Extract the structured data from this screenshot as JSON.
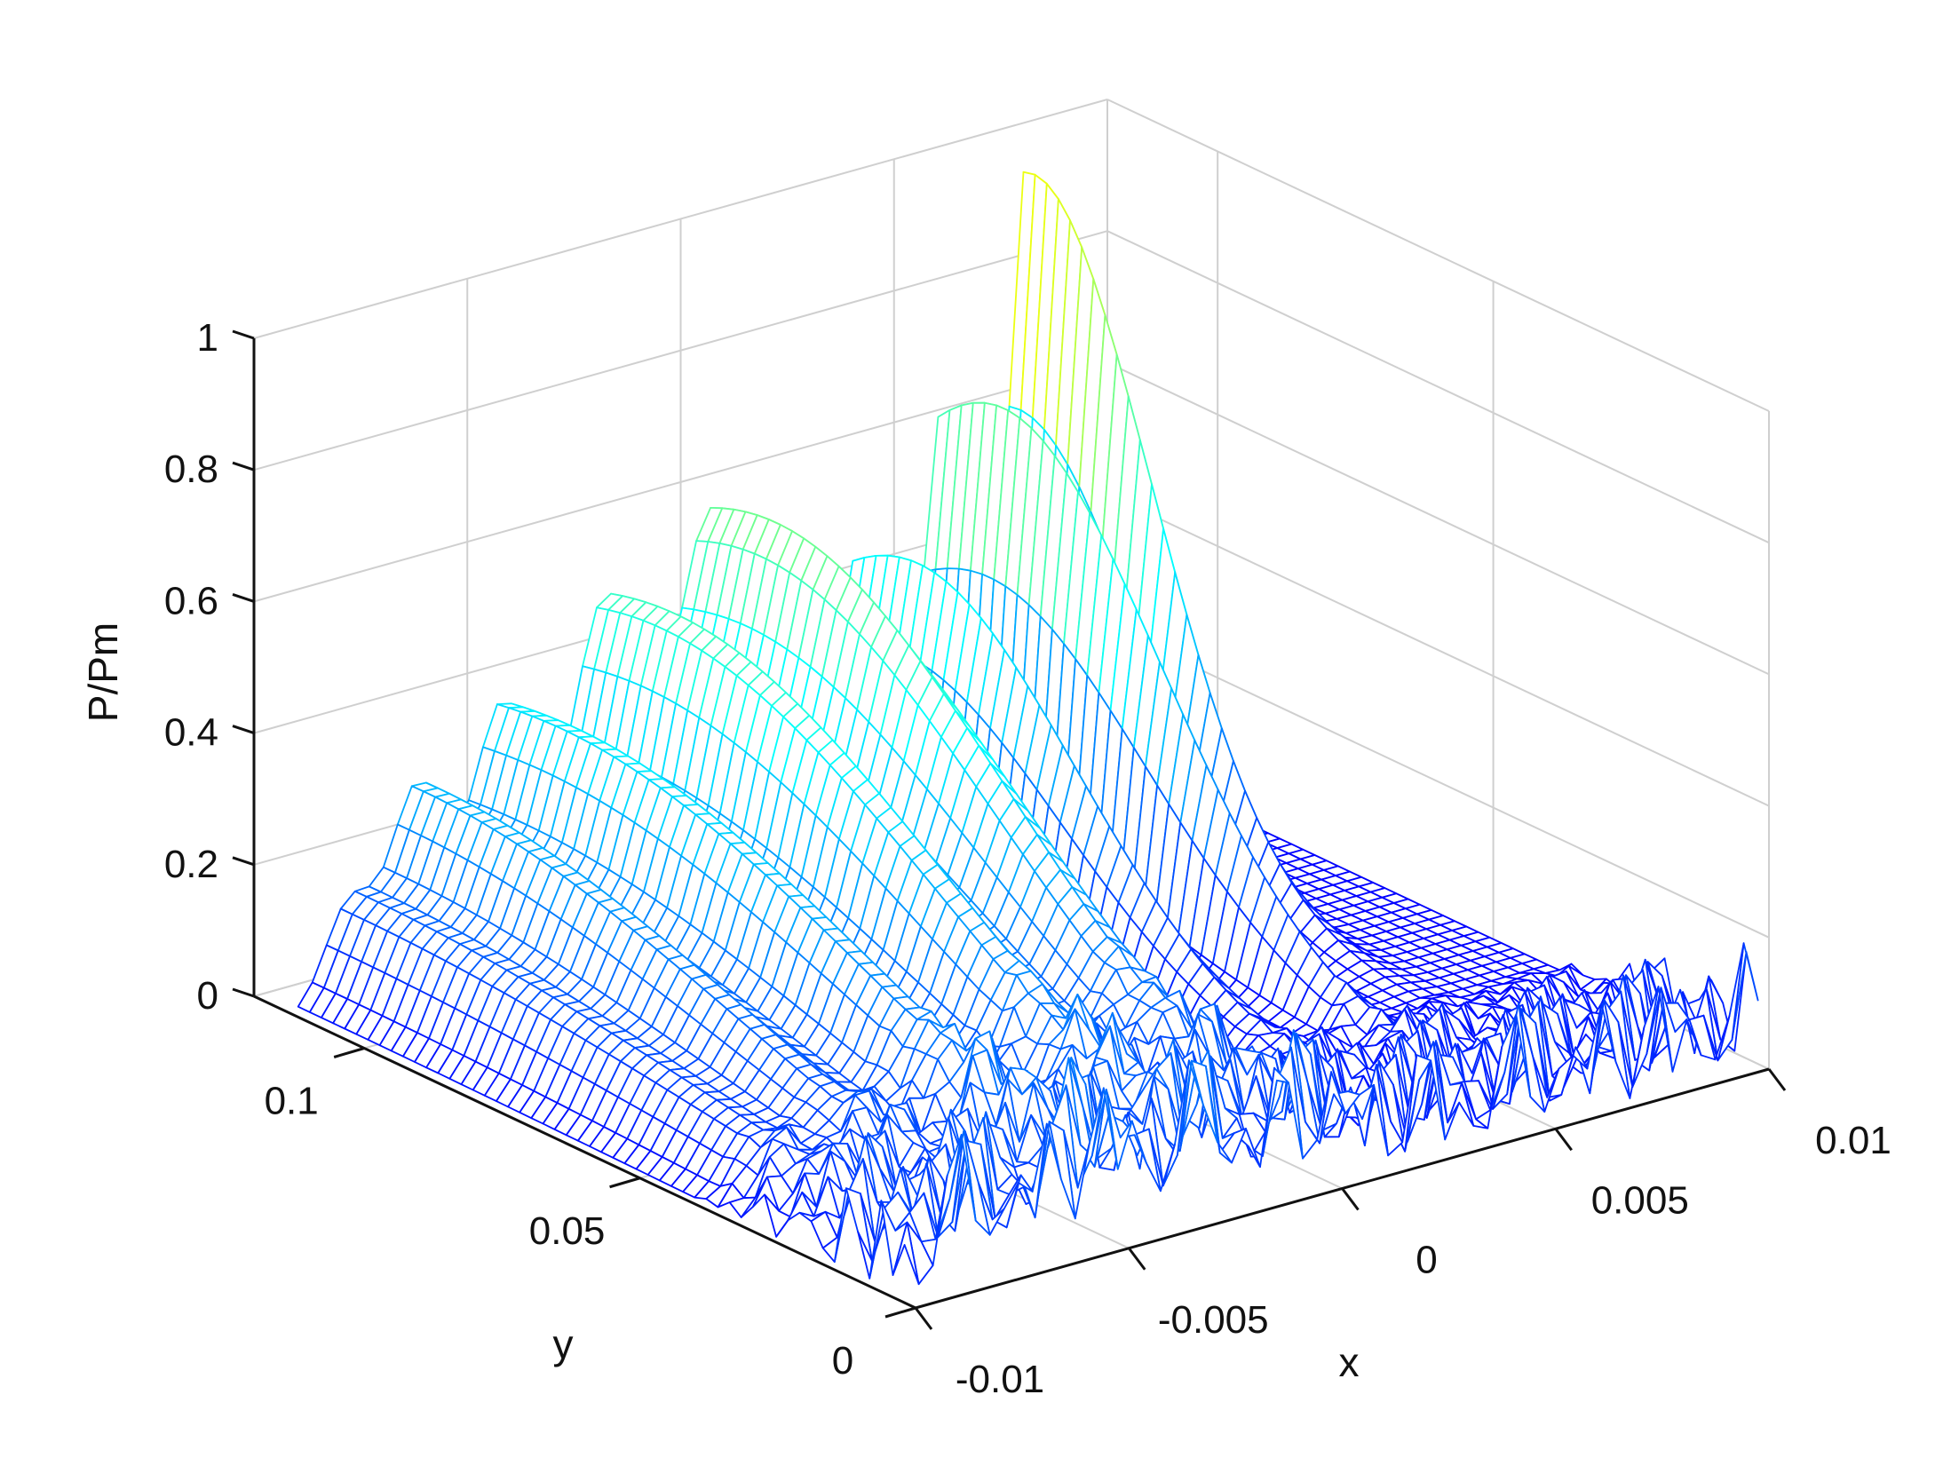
{
  "chart_data": {
    "type": "surface",
    "style": "mesh wireframe, jet colormap by height",
    "title": "",
    "xlabel": "x",
    "ylabel": "y",
    "zlabel": "P/Pm",
    "xlim": [
      -0.01,
      0.01
    ],
    "ylim": [
      0,
      0.12
    ],
    "zlim": [
      0,
      1
    ],
    "xticks": [
      "-0.01",
      "-0.005",
      "0",
      "0.005",
      "0.01"
    ],
    "xtick_values": [
      -0.01,
      -0.005,
      0,
      0.005,
      0.01
    ],
    "yticks": [
      "0",
      "0.05",
      "0.1"
    ],
    "ytick_values": [
      0,
      0.05,
      0.1
    ],
    "zticks": [
      "0",
      "0.2",
      "0.4",
      "0.6",
      "0.8",
      "1"
    ],
    "ztick_values": [
      0,
      0.2,
      0.4,
      0.6,
      0.8,
      1
    ],
    "grid": true,
    "ridges": [
      {
        "x": -0.0088,
        "peak": 0.15,
        "y_center": 0.11,
        "y_spread": 0.1,
        "x_width": 0.0008
      },
      {
        "x": -0.0072,
        "peak": 0.3,
        "y_center": 0.11,
        "y_spread": 0.08,
        "x_width": 0.0009
      },
      {
        "x": -0.0052,
        "peak": 0.4,
        "y_center": 0.1,
        "y_spread": 0.08,
        "x_width": 0.001
      },
      {
        "x": -0.0028,
        "peak": 0.52,
        "y_center": 0.1,
        "y_spread": 0.07,
        "x_width": 0.0011
      },
      {
        "x": -0.0003,
        "peak": 0.62,
        "y_center": 0.1,
        "y_spread": 0.06,
        "x_width": 0.0012
      },
      {
        "x": 0.003,
        "peak": 0.5,
        "y_center": 0.1,
        "y_spread": 0.04,
        "x_width": 0.0006
      },
      {
        "x": 0.005,
        "peak": 0.7,
        "y_center": 0.1,
        "y_spread": 0.04,
        "x_width": 0.0005
      },
      {
        "x": 0.007,
        "peak": 0.98,
        "y_center": 0.11,
        "y_spread": 0.03,
        "x_width": 0.0005
      }
    ],
    "near_field_noise": {
      "amplitude": 0.2,
      "y_extent": 0.04
    }
  }
}
